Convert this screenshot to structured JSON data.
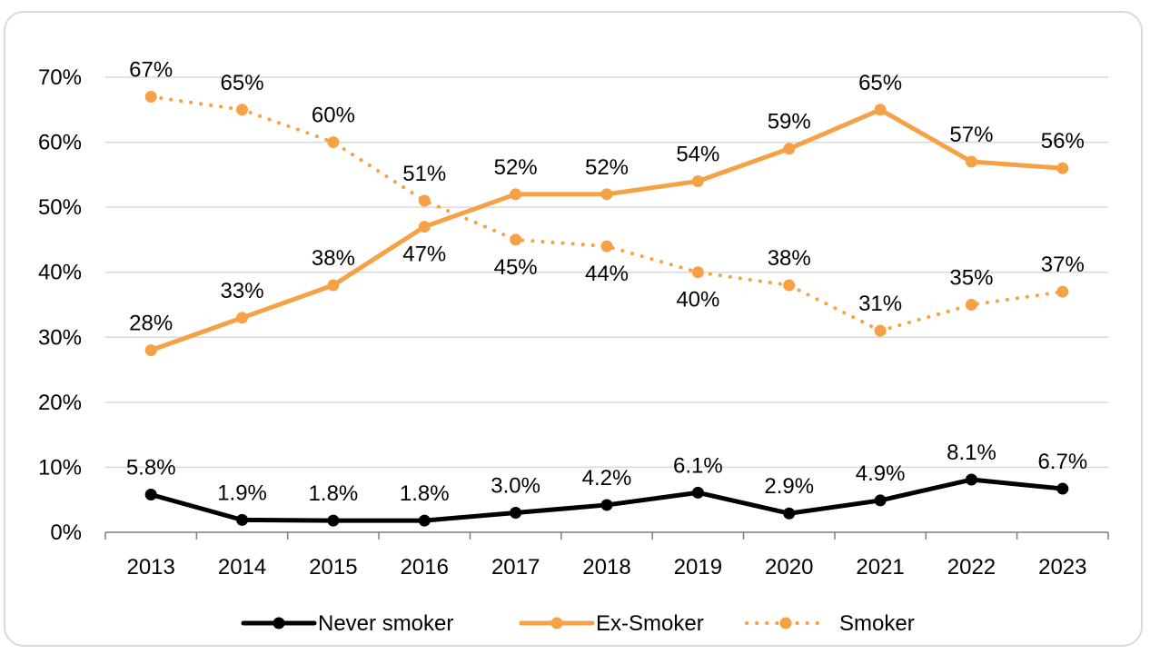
{
  "chart_data": {
    "type": "line",
    "categories": [
      "2013",
      "2014",
      "2015",
      "2016",
      "2017",
      "2018",
      "2019",
      "2020",
      "2021",
      "2022",
      "2023"
    ],
    "ylim": [
      0,
      70
    ],
    "y_ticks": [
      "0%",
      "10%",
      "20%",
      "30%",
      "40%",
      "50%",
      "60%",
      "70%"
    ],
    "y_unit": "%",
    "grid": "horizontal",
    "legend_position": "bottom",
    "series": [
      {
        "name": "Never smoker",
        "color": "#000000",
        "style": "solid",
        "values": [
          5.8,
          1.9,
          1.8,
          1.8,
          3.0,
          4.2,
          6.1,
          2.9,
          4.9,
          8.1,
          6.7
        ],
        "labels": [
          "5.8%",
          "1.9%",
          "1.8%",
          "1.8%",
          "3.0%",
          "4.2%",
          "6.1%",
          "2.9%",
          "4.9%",
          "8.1%",
          "6.7%"
        ]
      },
      {
        "name": "Ex-Smoker",
        "color": "#f5a145",
        "style": "solid",
        "values": [
          28,
          33,
          38,
          47,
          52,
          52,
          54,
          59,
          65,
          57,
          56
        ],
        "labels": [
          "28%",
          "33%",
          "38%",
          "47%",
          "52%",
          "52%",
          "54%",
          "59%",
          "65%",
          "57%",
          "56%"
        ]
      },
      {
        "name": "Smoker",
        "color": "#f5a145",
        "style": "dotted",
        "values": [
          67,
          65,
          60,
          51,
          45,
          44,
          40,
          38,
          31,
          35,
          37
        ],
        "labels": [
          "67%",
          "65%",
          "60%",
          "51%",
          "45%",
          "44%",
          "40%",
          "38%",
          "31%",
          "35%",
          "37%"
        ]
      }
    ]
  }
}
